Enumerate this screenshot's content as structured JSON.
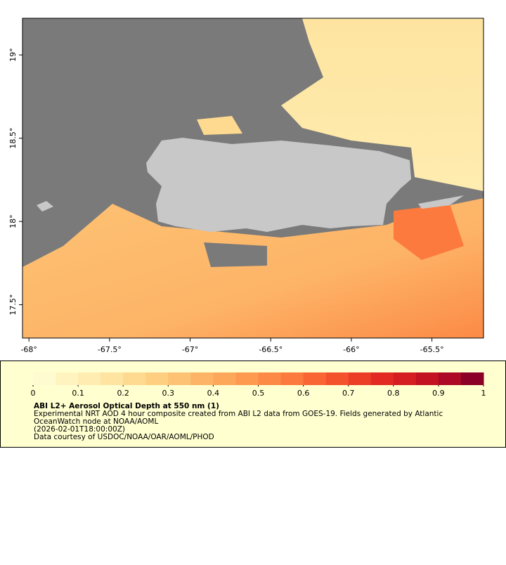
{
  "map": {
    "xlim": [
      -68.04,
      -65.18
    ],
    "ylim": [
      17.3,
      19.22
    ],
    "xticks": [
      {
        "value": -68,
        "label": "-68°"
      },
      {
        "value": -67.5,
        "label": "-67.5°"
      },
      {
        "value": -67,
        "label": "-67°"
      },
      {
        "value": -66.5,
        "label": "-66.5°"
      },
      {
        "value": -66,
        "label": "-66°"
      },
      {
        "value": -65.5,
        "label": "-65.5°"
      }
    ],
    "yticks": [
      {
        "value": 17.5,
        "label": "17.5°"
      },
      {
        "value": 18,
        "label": "18°"
      },
      {
        "value": 18.5,
        "label": "18.5°"
      },
      {
        "value": 19,
        "label": "19°"
      }
    ]
  },
  "colorbar": {
    "lim": [
      0,
      1
    ],
    "ticks": [
      0,
      0.1,
      0.2,
      0.3,
      0.4,
      0.5,
      0.6,
      0.7,
      0.8,
      0.9,
      1
    ],
    "colors": [
      "#fffbd0",
      "#fff4c0",
      "#ffecb0",
      "#fee4a0",
      "#fed990",
      "#fecf80",
      "#fdc274",
      "#fdb467",
      "#fda75b",
      "#fd9a50",
      "#fc8a46",
      "#fc7a3d",
      "#f96634",
      "#f4512d",
      "#ec3d27",
      "#e32a22",
      "#d41e22",
      "#c31222",
      "#ad0826",
      "#8a0026"
    ]
  },
  "caption": {
    "title": "ABI L2+ Aerosol Optical Depth at 550 nm (1)",
    "lines": [
      "Experimental NRT AOD 4 hour composite created from ABI L2 data from GOES-19. Fields generated by Atlantic",
      "OceanWatch node at NOAA/AOML",
      "(2026-02-01T18:00:00Z)",
      "Data courtesy of USDOC/NOAA/OAR/AOML/PHOD"
    ]
  }
}
